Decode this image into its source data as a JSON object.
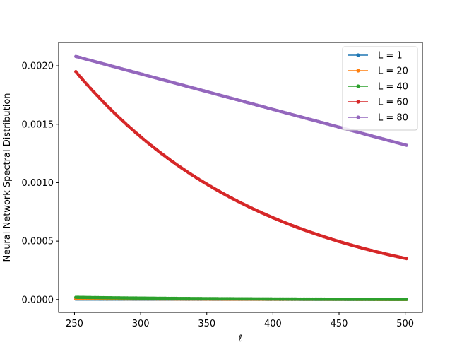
{
  "chart_data": {
    "type": "line",
    "title": "",
    "xlabel": "ℓ",
    "ylabel": "Neural Network Spectral Distribution",
    "xlim": [
      238,
      513
    ],
    "ylim": [
      -0.00011,
      0.0022
    ],
    "x_ticks": [
      250,
      300,
      350,
      400,
      450,
      500
    ],
    "x_tick_labels": [
      "250",
      "300",
      "350",
      "400",
      "450",
      "500"
    ],
    "y_ticks": [
      0.0,
      0.0005,
      0.001,
      0.0015,
      0.002
    ],
    "y_tick_labels": [
      "0.0000",
      "0.0005",
      "0.0010",
      "0.0015",
      "0.0020"
    ],
    "grid": false,
    "legend_position": "top-right",
    "x_range": [
      251,
      501
    ],
    "series": [
      {
        "name": "L = 1",
        "color": "#1f77b4",
        "start": 3.5e-06,
        "end": 5e-07,
        "shape": "linear"
      },
      {
        "name": "L = 20",
        "color": "#ff7f0e",
        "start": 6e-06,
        "end": 1e-06,
        "shape": "linear"
      },
      {
        "name": "L = 40",
        "color": "#2ca02c",
        "start": 1.9e-05,
        "end": 2e-06,
        "shape": "exp"
      },
      {
        "name": "L = 60",
        "color": "#d62728",
        "start": 0.00195,
        "end": 0.00035,
        "shape": "exp"
      },
      {
        "name": "L = 80",
        "color": "#9467bd",
        "start": 0.00208,
        "end": 0.00132,
        "shape": "linear"
      }
    ]
  }
}
